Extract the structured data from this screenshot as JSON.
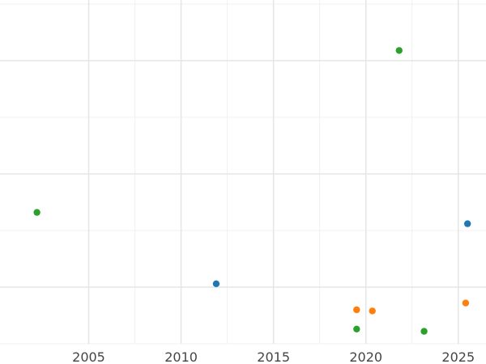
{
  "chart_data": {
    "type": "scatter",
    "title": "",
    "xlabel": "",
    "ylabel": "",
    "xlim": [
      2000.2,
      2026.5
    ],
    "ylim": [
      0,
      30
    ],
    "x_ticks": [
      "2005",
      "2010",
      "2015",
      "2020",
      "2025"
    ],
    "x_tick_values": [
      2005,
      2010,
      2015,
      2020,
      2025
    ],
    "y_major_gridlines": [
      5,
      15,
      25
    ],
    "y_minor_gridlines": [
      0,
      10,
      20,
      30
    ],
    "x_minor_gridlines": [
      2007.5,
      2012.5,
      2017.5,
      2022.5
    ],
    "grid": true,
    "legend": "none",
    "series": [
      {
        "color": "#1f77b4",
        "points": [
          {
            "x": 2011.9,
            "y": 5.3
          },
          {
            "x": 2025.5,
            "y": 10.6
          }
        ]
      },
      {
        "color": "#ff7f0e",
        "points": [
          {
            "x": 2019.5,
            "y": 3.0
          },
          {
            "x": 2020.35,
            "y": 2.9
          },
          {
            "x": 2025.4,
            "y": 3.6
          }
        ]
      },
      {
        "color": "#2ca02c",
        "points": [
          {
            "x": 2002.2,
            "y": 11.6
          },
          {
            "x": 2019.5,
            "y": 1.3
          },
          {
            "x": 2021.8,
            "y": 25.9
          },
          {
            "x": 2023.15,
            "y": 1.1
          }
        ]
      }
    ]
  }
}
